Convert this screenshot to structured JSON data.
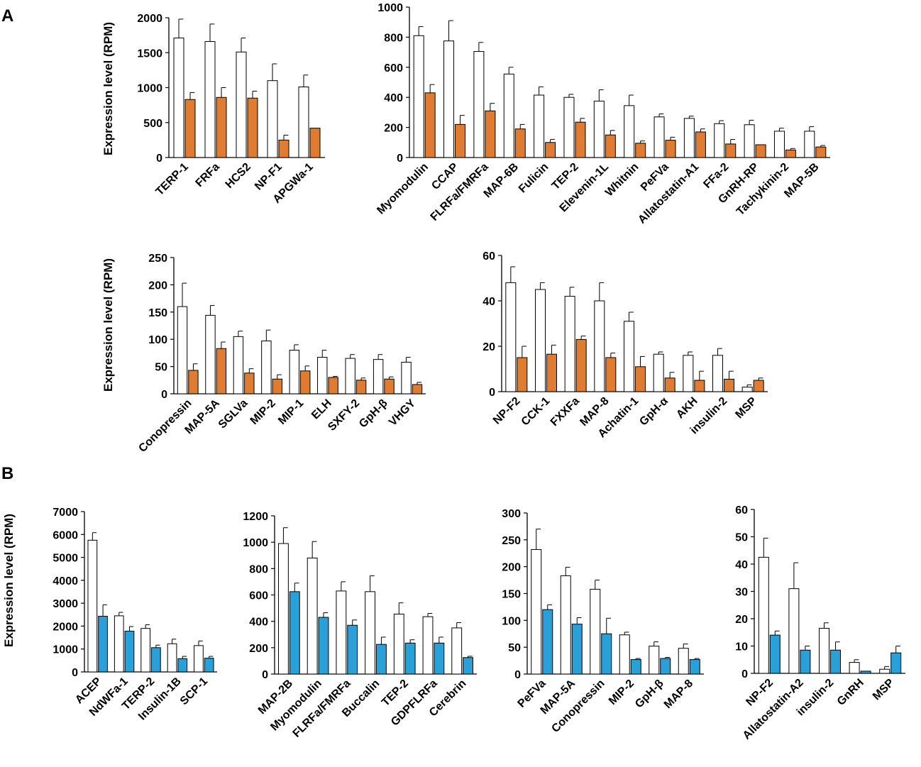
{
  "panel_labels": {
    "a": "A",
    "b": "B"
  },
  "colors": {
    "control": "#ffffff",
    "panelA": "#e07b32",
    "panelB": "#2aa0d8",
    "stroke": "#000000"
  },
  "chart_data": [
    {
      "id": "A1",
      "panel": "A",
      "type": "bar",
      "ylabel": "Expression level (RPM)",
      "ylim": [
        0,
        2000
      ],
      "yticks": [
        "0",
        "500",
        "1000",
        "1500",
        "2000"
      ],
      "categories": [
        "TERP-1",
        "FRFa",
        "HCS2",
        "NP-F1",
        "APGWa-1"
      ],
      "series": [
        {
          "name": "white",
          "values": [
            1710,
            1660,
            1510,
            1100,
            1010
          ],
          "errors": [
            270,
            250,
            200,
            240,
            170
          ]
        },
        {
          "name": "colored",
          "values": [
            830,
            860,
            850,
            250,
            420
          ],
          "errors": [
            100,
            140,
            100,
            70,
            0
          ]
        }
      ]
    },
    {
      "id": "A2",
      "panel": "A",
      "type": "bar",
      "ylabel": "",
      "ylim": [
        0,
        1000
      ],
      "yticks": [
        "0",
        "200",
        "400",
        "600",
        "800",
        "1000"
      ],
      "categories": [
        "Myomodulin",
        "CCAP",
        "FLRFa/FMRFa",
        "MAP-6B",
        "Fulicin",
        "TEP-2",
        "Elevenin-1L",
        "Whitnin",
        "PeFVa",
        "Allatostatin-A1",
        "FFa-2",
        "GnRH-RP",
        "Tachykinin-2",
        "MAP-5B"
      ],
      "series": [
        {
          "name": "white",
          "values": [
            810,
            775,
            705,
            555,
            415,
            400,
            375,
            345,
            270,
            260,
            225,
            218,
            175,
            175
          ],
          "errors": [
            60,
            135,
            60,
            45,
            55,
            20,
            75,
            70,
            20,
            15,
            20,
            30,
            20,
            30
          ]
        },
        {
          "name": "colored",
          "values": [
            430,
            220,
            310,
            190,
            100,
            235,
            150,
            95,
            115,
            170,
            90,
            85,
            50,
            70
          ],
          "errors": [
            55,
            60,
            50,
            30,
            20,
            25,
            30,
            15,
            20,
            20,
            30,
            0,
            10,
            10
          ]
        }
      ]
    },
    {
      "id": "A3",
      "panel": "A",
      "type": "bar",
      "ylabel": "Expression level (RPM)",
      "ylim": [
        0,
        250
      ],
      "yticks": [
        "0",
        "50",
        "100",
        "150",
        "200",
        "250"
      ],
      "categories": [
        "Conopressin",
        "MAP-5A",
        "SGLVa",
        "MIP-2",
        "MIP-1",
        "ELH",
        "SXFY-2",
        "GpH-β",
        "VHGY"
      ],
      "series": [
        {
          "name": "white",
          "values": [
            160,
            144,
            105,
            97,
            80,
            67,
            65,
            63,
            58
          ],
          "errors": [
            43,
            18,
            10,
            20,
            10,
            13,
            7,
            9,
            9
          ]
        },
        {
          "name": "colored",
          "values": [
            43,
            83,
            38,
            27,
            42,
            30,
            25,
            27,
            17
          ],
          "errors": [
            12,
            12,
            8,
            8,
            9,
            2,
            4,
            4,
            4
          ]
        }
      ]
    },
    {
      "id": "A4",
      "panel": "A",
      "type": "bar",
      "ylabel": "",
      "ylim": [
        0,
        60
      ],
      "yticks": [
        "0",
        "20",
        "40",
        "60"
      ],
      "categories": [
        "NP-F2",
        "CCK-1",
        "FXXFa",
        "MAP-8",
        "Achatin-1",
        "GpH-α",
        "AKH",
        "insulin-2",
        "MSP"
      ],
      "series": [
        {
          "name": "white",
          "values": [
            48,
            45,
            42,
            40,
            31,
            16.5,
            16,
            16,
            2
          ],
          "errors": [
            7,
            3,
            4,
            8,
            4,
            1,
            1.5,
            3,
            1
          ]
        },
        {
          "name": "colored",
          "values": [
            15,
            16.5,
            23,
            15,
            11,
            6,
            5,
            5.5,
            5
          ],
          "errors": [
            5,
            4,
            1.5,
            2,
            4.5,
            2.5,
            4,
            3.5,
            1
          ]
        }
      ]
    },
    {
      "id": "B1",
      "panel": "B",
      "type": "bar",
      "ylabel": "Expression level (RPM)",
      "ylim": [
        0,
        7000
      ],
      "yticks": [
        "0",
        "1000",
        "2000",
        "3000",
        "4000",
        "5000",
        "6000",
        "7000"
      ],
      "categories": [
        "ACEP",
        "NdWFa-1",
        "TERP-2",
        "Insulin-1B",
        "SCP-1"
      ],
      "series": [
        {
          "name": "white",
          "values": [
            5750,
            2450,
            1900,
            1230,
            1150
          ],
          "errors": [
            330,
            150,
            160,
            200,
            200
          ]
        },
        {
          "name": "colored",
          "values": [
            2430,
            1780,
            1060,
            580,
            600
          ],
          "errors": [
            500,
            200,
            110,
            100,
            80
          ]
        }
      ]
    },
    {
      "id": "B2",
      "panel": "B",
      "type": "bar",
      "ylabel": "",
      "ylim": [
        0,
        1200
      ],
      "yticks": [
        "0",
        "200",
        "400",
        "600",
        "800",
        "1000",
        "1200"
      ],
      "categories": [
        "MAP-2B",
        "Myomodulin",
        "FLRFa/FMRFa",
        "Buccalin",
        "TEP-2",
        "GDPFLRFa",
        "Cerebrin"
      ],
      "series": [
        {
          "name": "white",
          "values": [
            990,
            880,
            630,
            625,
            455,
            435,
            350
          ],
          "errors": [
            120,
            125,
            70,
            120,
            85,
            25,
            40
          ]
        },
        {
          "name": "colored",
          "values": [
            625,
            430,
            370,
            225,
            235,
            235,
            125
          ],
          "errors": [
            65,
            35,
            40,
            55,
            25,
            45,
            10
          ]
        }
      ]
    },
    {
      "id": "B3",
      "panel": "B",
      "type": "bar",
      "ylabel": "",
      "ylim": [
        0,
        300
      ],
      "yticks": [
        "0",
        "50",
        "100",
        "150",
        "200",
        "250",
        "300"
      ],
      "categories": [
        "PeFVa",
        "MAP-5A",
        "Conopressin",
        "MIP-2",
        "GpH-β",
        "MAP-8"
      ],
      "series": [
        {
          "name": "white",
          "values": [
            232,
            183,
            158,
            73,
            52,
            48
          ],
          "errors": [
            38,
            16,
            17,
            5,
            8,
            8
          ]
        },
        {
          "name": "colored",
          "values": [
            120,
            93,
            75,
            27,
            29,
            27
          ],
          "errors": [
            9,
            12,
            29,
            2,
            2,
            2
          ]
        }
      ]
    },
    {
      "id": "B4",
      "panel": "B",
      "type": "bar",
      "ylabel": "",
      "ylim": [
        0,
        60
      ],
      "yticks": [
        "0",
        "10",
        "20",
        "30",
        "40",
        "50",
        "60"
      ],
      "categories": [
        "NP-F2",
        "Allatostatin-A2",
        "insulin-2",
        "GnRH",
        "MSP"
      ],
      "series": [
        {
          "name": "white",
          "values": [
            42.5,
            31,
            16.5,
            4,
            1.5
          ],
          "errors": [
            7,
            9.5,
            2,
            1,
            1
          ]
        },
        {
          "name": "colored",
          "values": [
            14,
            8.5,
            8.5,
            0.8,
            7.5
          ],
          "errors": [
            1.5,
            1.5,
            3,
            0,
            2.5
          ]
        }
      ]
    }
  ]
}
